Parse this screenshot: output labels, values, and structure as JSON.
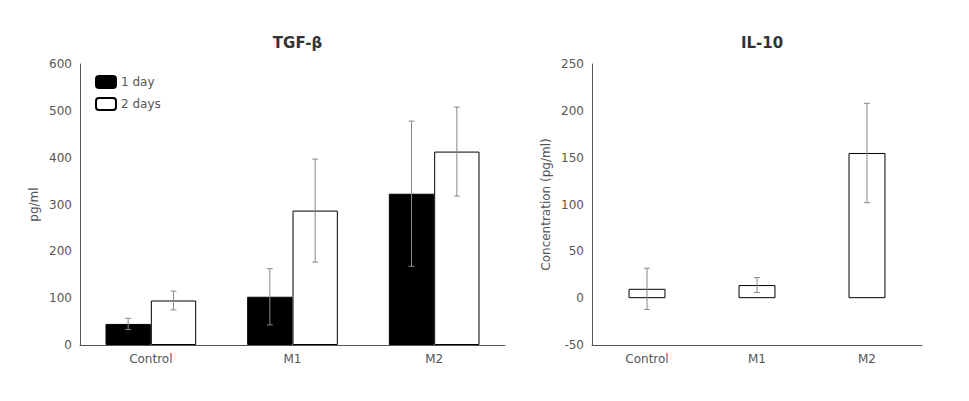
{
  "chart_data": [
    {
      "type": "bar",
      "title": "TGF-β",
      "categories": [
        "Control",
        "M1",
        "M2"
      ],
      "series": [
        {
          "name": "1 day",
          "color": "#000000",
          "values": [
            45,
            103,
            323
          ],
          "errors": [
            12,
            60,
            155
          ]
        },
        {
          "name": "2 days",
          "color": "#ffffff",
          "values": [
            95,
            287,
            413
          ],
          "errors": [
            20,
            110,
            95
          ]
        }
      ],
      "ylabel": "pg/ml",
      "ylim": [
        0,
        600
      ],
      "yticks": [
        0,
        100,
        200,
        300,
        400,
        500,
        600
      ],
      "grid": false,
      "legend": "upper left"
    },
    {
      "type": "bar",
      "title": "IL-10",
      "categories": [
        "Control",
        "M1",
        "M2"
      ],
      "color": "#ffffff",
      "values": [
        10,
        14,
        155
      ],
      "errors": [
        22,
        8,
        53
      ],
      "ylabel": "Concentration (pg/ml)",
      "ylim": [
        -50,
        250
      ],
      "yticks": [
        -50,
        0,
        50,
        100,
        150,
        200,
        250
      ],
      "grid": false
    }
  ]
}
